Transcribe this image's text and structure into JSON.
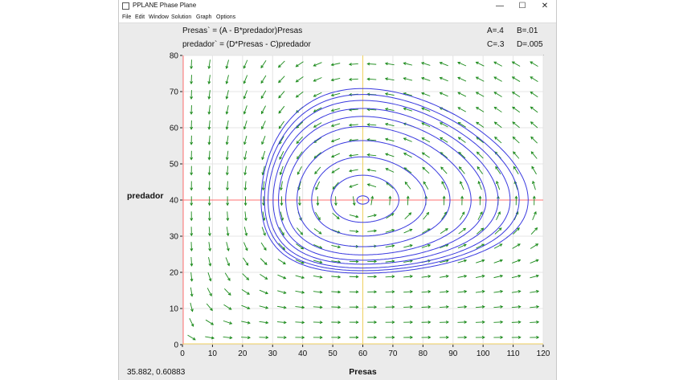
{
  "window": {
    "title": "PPLANE Phase Plane",
    "minimize_glyph": "—",
    "maximize_glyph": "☐",
    "close_glyph": "✕"
  },
  "menu": [
    "File",
    "Edit",
    "Window",
    "Solution",
    "Graph",
    "Options"
  ],
  "equations": {
    "eq1": "Presas` = (A - B*predador)Presas",
    "eq2": "predador` = (D*Presas - C)predador",
    "params": [
      "A=.4",
      "B=.01",
      "C=.3",
      "D=.005"
    ]
  },
  "chart_data": {
    "type": "scatter",
    "description_kind": "phase-plane",
    "xlabel": "Presas",
    "ylabel": "predador",
    "xlim": [
      0,
      120
    ],
    "ylim": [
      0,
      80
    ],
    "xticks": [
      0,
      10,
      20,
      30,
      40,
      50,
      60,
      70,
      80,
      90,
      100,
      110,
      120
    ],
    "yticks": [
      0,
      10,
      20,
      30,
      40,
      50,
      60,
      70,
      80
    ],
    "grid": true,
    "params": {
      "A": 0.4,
      "B": 0.01,
      "C": 0.3,
      "D": 0.005
    },
    "equilibrium": [
      60,
      40
    ],
    "nullcline_colors": {
      "vertical": "#f0d060",
      "horizontal": "#ff7070"
    },
    "orbit_color": "#3a3adf",
    "arrow_color": "#1a8a1a",
    "orbits": [
      {
        "start": [
          62,
          40
        ]
      },
      {
        "start": [
          72,
          40
        ]
      },
      {
        "start": [
          81,
          40
        ]
      },
      {
        "start": [
          89,
          40
        ]
      },
      {
        "start": [
          96,
          40
        ]
      },
      {
        "start": [
          101,
          40
        ]
      },
      {
        "start": [
          105,
          40
        ]
      },
      {
        "start": [
          109,
          40
        ]
      },
      {
        "start": [
          112,
          40
        ]
      },
      {
        "start": [
          115,
          40
        ]
      }
    ]
  },
  "status": {
    "coords": "35.882,  0.60883"
  }
}
